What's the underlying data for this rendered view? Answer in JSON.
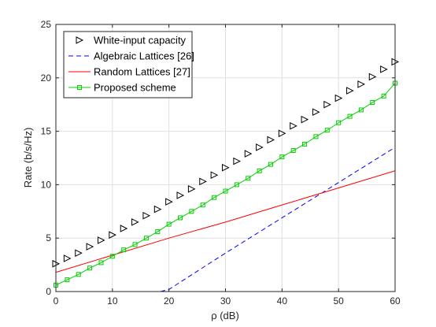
{
  "chart_data": {
    "type": "line",
    "xlabel": "ρ (dB)",
    "ylabel": "Rate (b/s/Hz)",
    "xlim": [
      0,
      60
    ],
    "ylim": [
      0,
      25
    ],
    "xticks": [
      0,
      10,
      20,
      30,
      40,
      50,
      60
    ],
    "yticks": [
      0,
      5,
      10,
      15,
      20,
      25
    ],
    "grid": true,
    "legend_position": "top-left",
    "series": [
      {
        "name": "White-input capacity",
        "style": "markers",
        "marker": "triangle-right",
        "color": "#000000",
        "x": [
          0,
          2,
          4,
          6,
          8,
          10,
          12,
          14,
          16,
          18,
          20,
          22,
          24,
          26,
          28,
          30,
          32,
          34,
          36,
          38,
          40,
          42,
          44,
          46,
          48,
          50,
          52,
          54,
          56,
          58,
          60
        ],
        "y": [
          2.6,
          3.1,
          3.6,
          4.2,
          4.8,
          5.3,
          5.9,
          6.5,
          7.1,
          7.7,
          8.4,
          9.0,
          9.6,
          10.3,
          10.9,
          11.6,
          12.2,
          12.9,
          13.5,
          14.2,
          14.8,
          15.5,
          16.1,
          16.8,
          17.5,
          18.1,
          18.8,
          19.4,
          20.1,
          20.8,
          21.5
        ]
      },
      {
        "name": "Algebraic Lattices [26]",
        "style": "dashed",
        "color": "#0000ff",
        "x": [
          18.5,
          20,
          30,
          40,
          50,
          60
        ],
        "y": [
          0,
          0.2,
          3.6,
          6.9,
          10.2,
          13.5
        ]
      },
      {
        "name": "Random Lattices [27]",
        "style": "solid",
        "color": "#ff0000",
        "x": [
          0,
          10,
          20,
          30,
          40,
          50,
          60
        ],
        "y": [
          1.8,
          3.4,
          5.0,
          6.5,
          8.1,
          9.7,
          11.3
        ]
      },
      {
        "name": "Proposed scheme",
        "style": "solid-markers",
        "marker": "square",
        "color": "#00d000",
        "x": [
          0,
          2,
          4,
          6,
          8,
          10,
          12,
          14,
          16,
          18,
          20,
          22,
          24,
          26,
          28,
          30,
          32,
          34,
          36,
          38,
          40,
          42,
          44,
          46,
          48,
          50,
          52,
          54,
          56,
          58,
          60
        ],
        "y": [
          0.6,
          1.1,
          1.6,
          2.2,
          2.7,
          3.3,
          3.9,
          4.4,
          5.0,
          5.6,
          6.3,
          6.9,
          7.5,
          8.1,
          8.8,
          9.4,
          10.0,
          10.6,
          11.3,
          11.9,
          12.6,
          13.2,
          13.8,
          14.5,
          15.1,
          15.8,
          16.4,
          17.0,
          17.7,
          18.3,
          19.5
        ]
      }
    ]
  }
}
